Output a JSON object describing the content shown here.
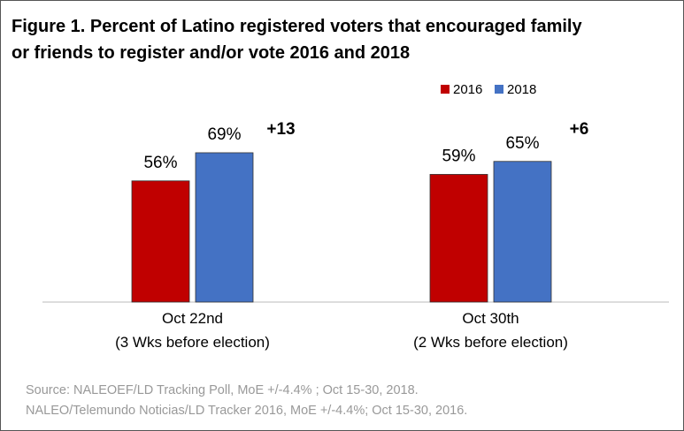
{
  "chart_data": {
    "type": "bar",
    "title": "Figure 1. Percent of Latino registered voters that encouraged family or friends to register and/or vote 2016 and 2018",
    "categories": [
      "Oct 22nd\n(3 Wks before election)",
      "Oct 30th\n(2 Wks before election)"
    ],
    "series": [
      {
        "name": "2016",
        "color": "#c00000",
        "values": [
          56,
          59
        ],
        "value_labels": [
          "56%",
          "59%"
        ]
      },
      {
        "name": "2018",
        "color": "#4472c4",
        "values": [
          69,
          65
        ],
        "value_labels": [
          "69%",
          "65%"
        ]
      }
    ],
    "annotations": [
      "+13",
      "+6"
    ],
    "ylim": [
      0,
      100
    ],
    "legend": "top-right",
    "source": "Source: NALEOEF/LD Tracking Poll, MoE +/-4.4% ; Oct 15-30, 2018.\nNALEO/Telemundo Noticias/LD Tracker 2016, MoE +/-4.4%; Oct 15-30, 2016."
  }
}
